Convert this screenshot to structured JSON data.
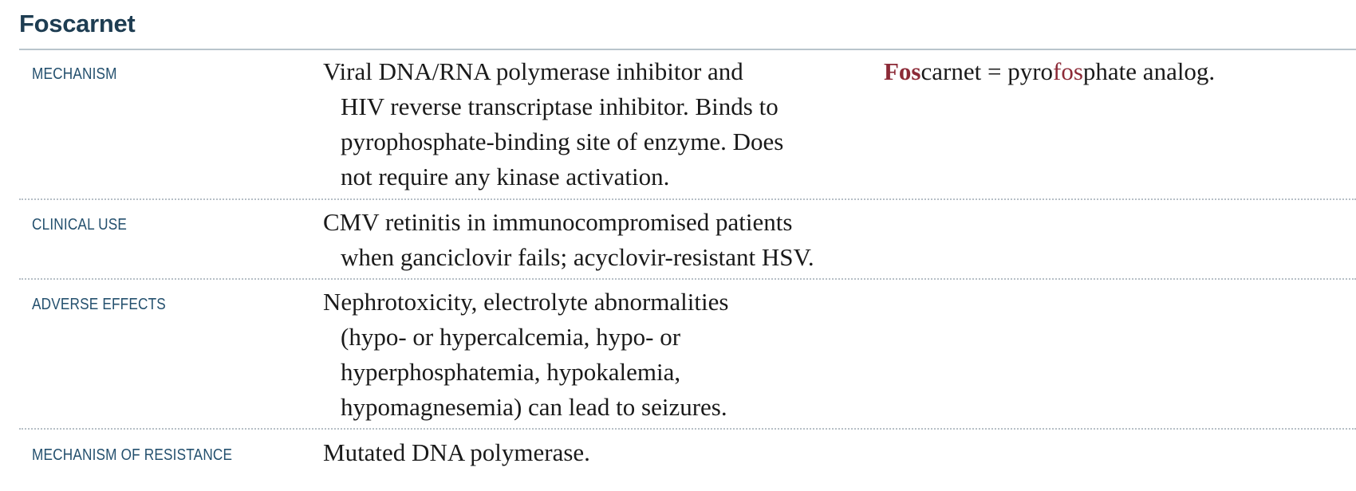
{
  "title": "Foscarnet",
  "rows": [
    {
      "label": "MECHANISM",
      "lines": [
        "Viral DNA/RNA polymerase inhibitor and",
        "HIV reverse transcriptase inhibitor. Binds to",
        "pyrophosphate-binding site of enzyme. Does",
        "not require any kinase activation."
      ],
      "note": {
        "part1_highlight": "Fos",
        "part2": "carnet = pyro",
        "part3_highlight": "fos",
        "part4": "phate analog."
      }
    },
    {
      "label": "CLINICAL USE",
      "lines": [
        "CMV retinitis in immunocompromised patients",
        "when ganciclovir fails; acyclovir-resistant HSV."
      ]
    },
    {
      "label": "ADVERSE EFFECTS",
      "lines": [
        "Nephrotoxicity, electrolyte abnormalities",
        "(hypo- or hypercalcemia, hypo- or",
        "hyperphosphatemia, hypokalemia,",
        "hypomagnesemia) can lead to seizures."
      ]
    },
    {
      "label": "MECHANISM OF RESISTANCE",
      "lines": [
        "Mutated DNA polymerase."
      ]
    }
  ],
  "colors": {
    "title": "#1e3d52",
    "label": "#24506e",
    "highlight": "#8c2a37",
    "body_text": "#1a1a1a",
    "rule": "#b9c5cc"
  }
}
